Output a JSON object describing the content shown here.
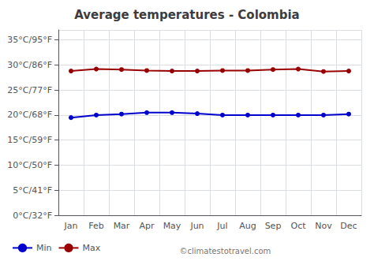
{
  "chart_data": {
    "type": "line",
    "title": "Average temperatures - Colombia",
    "categories": [
      "Jan",
      "Feb",
      "Mar",
      "Apr",
      "May",
      "Jun",
      "Jul",
      "Aug",
      "Sep",
      "Oct",
      "Nov",
      "Dec"
    ],
    "series": [
      {
        "name": "Min",
        "color": "#0000cc",
        "marker": "circle",
        "values": [
          19.5,
          20.0,
          20.2,
          20.5,
          20.5,
          20.3,
          20.0,
          20.0,
          20.0,
          20.0,
          20.0,
          20.2
        ]
      },
      {
        "name": "Max",
        "color": "#990000",
        "marker": "circle",
        "values": [
          28.8,
          29.2,
          29.1,
          28.9,
          28.8,
          28.8,
          28.9,
          28.9,
          29.1,
          29.2,
          28.7,
          28.8
        ]
      }
    ],
    "ylim": [
      0,
      37
    ],
    "yticks": [
      {
        "value": 0,
        "label": "0°C/32°F"
      },
      {
        "value": 5,
        "label": "5°C/41°F"
      },
      {
        "value": 10,
        "label": "10°C/50°F"
      },
      {
        "value": 15,
        "label": "15°C/59°F"
      },
      {
        "value": 20,
        "label": "20°C/68°F"
      },
      {
        "value": 25,
        "label": "25°C/77°F"
      },
      {
        "value": 30,
        "label": "30°C/86°F"
      },
      {
        "value": 35,
        "label": "35°C/95°F"
      }
    ],
    "grid": true,
    "legend": "lower left",
    "annotations": [
      "©climatestotravel.com"
    ]
  }
}
